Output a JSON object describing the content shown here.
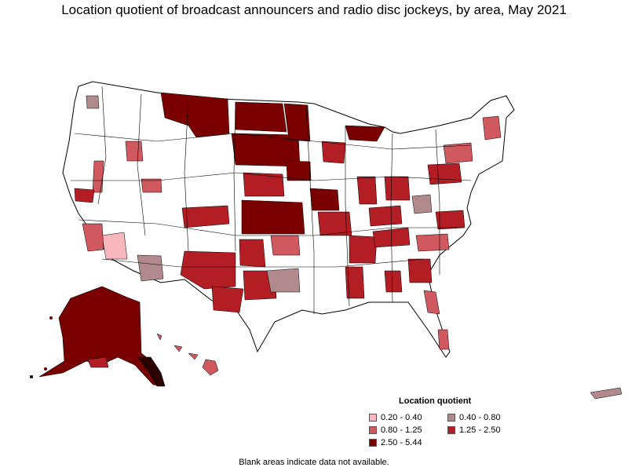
{
  "title": "Location quotient of broadcast announcers and radio disc jockeys, by area, May 2021",
  "legend": {
    "title": "Location quotient",
    "items": [
      {
        "label": "0.20 - 0.40",
        "color": "#f7b7bd"
      },
      {
        "label": "0.40 - 0.80",
        "color": "#b08a8c"
      },
      {
        "label": "0.80 - 1.25",
        "color": "#d0595f"
      },
      {
        "label": "1.25 - 2.50",
        "color": "#b31d24"
      },
      {
        "label": "2.50 - 5.44",
        "color": "#7a0000"
      }
    ]
  },
  "footnote": "Blank areas indicate data not available.",
  "colors": {
    "outline": "#000000",
    "blank": "#ffffff"
  }
}
